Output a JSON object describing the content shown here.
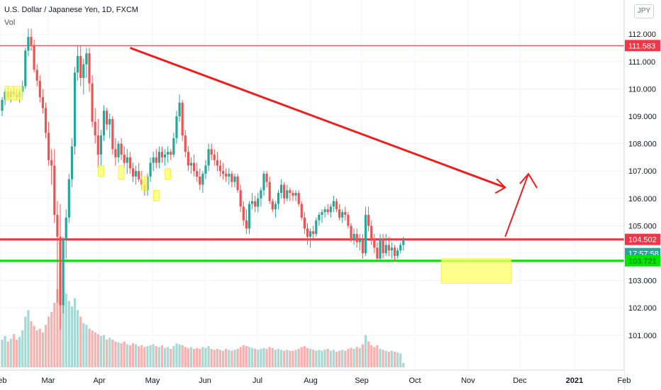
{
  "header": {
    "title": "U.S. Dollar / Japanese Yen, 1D, FXCM",
    "volume_label": "Vol"
  },
  "currency_badge": "JPY",
  "chart_data": {
    "type": "candlestick",
    "symbol": "USDJPY",
    "interval": "1D",
    "ylim": [
      100.2,
      113.0
    ],
    "y_ticks": [
      "101.000",
      "102.000",
      "103.000",
      "104.000",
      "105.000",
      "106.000",
      "107.000",
      "108.000",
      "109.000",
      "110.000",
      "111.000",
      "112.000"
    ],
    "x_ticks": [
      "Feb",
      "Mar",
      "Apr",
      "May",
      "Jun",
      "Jul",
      "Aug",
      "Sep",
      "Oct",
      "Nov",
      "Dec",
      "2021",
      "Feb"
    ],
    "price_labels": {
      "resistance_top": "111.583",
      "resistance": "104.502",
      "countdown": "17:57:58",
      "support": "103.721"
    },
    "levels": [
      {
        "name": "resistance_top",
        "value": 111.583,
        "color": "#f23645"
      },
      {
        "name": "resistance",
        "value": 104.502,
        "color": "#f23645"
      },
      {
        "name": "support",
        "value": 103.721,
        "color": "#00e600"
      }
    ],
    "colors": {
      "up": "#26a69a",
      "down": "#ef5350",
      "up_vol": "#a8d8d3",
      "down_vol": "#f7b2b0",
      "current_price": "#26a69a"
    },
    "trendline": {
      "from": {
        "x": 44,
        "y": 111.5
      },
      "to": {
        "x": 173,
        "y": 106.4
      }
    },
    "projection_arrow": {
      "from": {
        "x": 173,
        "y": 104.6
      },
      "to": {
        "x": 181,
        "y": 106.9
      }
    },
    "highlight_boxes": [
      {
        "x0": 1,
        "x1": 7,
        "y0": 109.6,
        "y1": 110.1
      },
      {
        "x0": 33,
        "x1": 35,
        "y0": 106.8,
        "y1": 107.2
      },
      {
        "x0": 40,
        "x1": 42,
        "y0": 106.7,
        "y1": 107.2
      },
      {
        "x0": 48,
        "x1": 50,
        "y0": 106.3,
        "y1": 106.8
      },
      {
        "x0": 52,
        "x1": 54,
        "y0": 105.9,
        "y1": 106.3
      },
      {
        "x0": 56,
        "x1": 58,
        "y0": 106.7,
        "y1": 107.1
      },
      {
        "x0": 151,
        "x1": 175,
        "y0": 102.9,
        "y1": 103.8
      }
    ],
    "ohlc": [
      [
        109.2,
        109.7,
        109.0,
        109.6
      ],
      [
        109.6,
        110.0,
        109.4,
        109.9
      ],
      [
        109.9,
        110.1,
        109.6,
        109.7
      ],
      [
        109.7,
        110.0,
        109.5,
        109.9
      ],
      [
        109.9,
        110.1,
        109.7,
        109.8
      ],
      [
        109.8,
        110.0,
        109.6,
        109.7
      ],
      [
        109.7,
        110.0,
        109.5,
        109.9
      ],
      [
        109.9,
        110.3,
        109.7,
        110.1
      ],
      [
        110.1,
        111.5,
        110.0,
        111.4
      ],
      [
        111.4,
        112.2,
        111.2,
        111.9
      ],
      [
        111.9,
        112.2,
        111.4,
        111.6
      ],
      [
        111.6,
        111.8,
        110.6,
        110.7
      ],
      [
        110.7,
        110.9,
        110.1,
        110.3
      ],
      [
        110.3,
        110.5,
        109.5,
        109.7
      ],
      [
        109.7,
        110.0,
        109.1,
        109.3
      ],
      [
        109.3,
        109.5,
        108.2,
        108.4
      ],
      [
        108.4,
        108.8,
        107.2,
        107.4
      ],
      [
        107.4,
        107.8,
        106.5,
        107.2
      ],
      [
        107.2,
        107.8,
        105.1,
        105.4
      ],
      [
        105.4,
        105.9,
        102.2,
        104.6
      ],
      [
        104.6,
        105.8,
        101.2,
        102.1
      ],
      [
        102.1,
        104.6,
        101.8,
        104.5
      ],
      [
        104.5,
        105.6,
        103.8,
        105.3
      ],
      [
        105.3,
        106.9,
        105.1,
        106.7
      ],
      [
        106.7,
        108.2,
        106.4,
        107.9
      ],
      [
        107.9,
        110.8,
        107.6,
        110.6
      ],
      [
        110.6,
        111.6,
        110.3,
        111.2
      ],
      [
        111.2,
        111.6,
        110.1,
        110.4
      ],
      [
        110.4,
        111.1,
        109.8,
        110.9
      ],
      [
        110.9,
        111.5,
        110.4,
        111.3
      ],
      [
        111.3,
        111.5,
        109.9,
        110.2
      ],
      [
        110.2,
        110.5,
        108.6,
        108.8
      ],
      [
        108.8,
        109.3,
        108.0,
        108.3
      ],
      [
        108.3,
        108.9,
        107.1,
        107.6
      ],
      [
        107.6,
        108.5,
        107.2,
        108.3
      ],
      [
        108.3,
        109.4,
        108.1,
        109.2
      ],
      [
        109.2,
        109.3,
        108.5,
        108.7
      ],
      [
        108.7,
        109.1,
        108.2,
        108.9
      ],
      [
        108.9,
        109.0,
        107.6,
        107.8
      ],
      [
        107.8,
        108.2,
        107.2,
        107.5
      ],
      [
        107.5,
        108.1,
        107.3,
        108.0
      ],
      [
        108.0,
        108.2,
        107.4,
        107.6
      ],
      [
        107.6,
        107.9,
        107.1,
        107.3
      ],
      [
        107.3,
        107.8,
        106.9,
        107.5
      ],
      [
        107.5,
        107.7,
        106.9,
        107.1
      ],
      [
        107.1,
        107.3,
        106.6,
        106.8
      ],
      [
        106.8,
        107.2,
        106.5,
        107.0
      ],
      [
        107.0,
        107.3,
        106.6,
        106.7
      ],
      [
        106.7,
        107.0,
        106.3,
        106.5
      ],
      [
        106.5,
        106.8,
        106.1,
        106.3
      ],
      [
        106.3,
        106.9,
        106.1,
        106.8
      ],
      [
        106.8,
        107.5,
        106.6,
        107.3
      ],
      [
        107.3,
        107.7,
        107.0,
        107.5
      ],
      [
        107.5,
        107.8,
        107.1,
        107.3
      ],
      [
        107.3,
        107.9,
        107.1,
        107.7
      ],
      [
        107.7,
        107.9,
        107.3,
        107.5
      ],
      [
        107.5,
        107.8,
        107.2,
        107.6
      ],
      [
        107.6,
        107.9,
        107.3,
        107.7
      ],
      [
        107.7,
        107.8,
        107.4,
        107.6
      ],
      [
        107.6,
        108.4,
        107.5,
        108.2
      ],
      [
        108.2,
        109.2,
        108.0,
        109.0
      ],
      [
        109.0,
        109.8,
        108.8,
        109.5
      ],
      [
        109.5,
        109.6,
        108.1,
        108.3
      ],
      [
        108.3,
        108.5,
        107.5,
        107.7
      ],
      [
        107.7,
        107.9,
        107.0,
        107.2
      ],
      [
        107.2,
        107.5,
        106.9,
        107.3
      ],
      [
        107.3,
        107.6,
        106.8,
        107.0
      ],
      [
        107.0,
        107.3,
        106.6,
        106.8
      ],
      [
        106.8,
        107.1,
        106.3,
        106.5
      ],
      [
        106.5,
        107.0,
        106.2,
        106.9
      ],
      [
        106.9,
        107.4,
        106.7,
        107.2
      ],
      [
        107.2,
        108.0,
        107.0,
        107.8
      ],
      [
        107.8,
        108.0,
        107.4,
        107.6
      ],
      [
        107.6,
        107.8,
        107.2,
        107.4
      ],
      [
        107.4,
        107.7,
        107.0,
        107.2
      ],
      [
        107.2,
        107.4,
        106.8,
        107.0
      ],
      [
        107.0,
        107.3,
        106.7,
        106.9
      ],
      [
        106.9,
        107.1,
        106.6,
        106.8
      ],
      [
        106.8,
        107.1,
        106.5,
        106.9
      ],
      [
        106.9,
        107.0,
        106.4,
        106.6
      ],
      [
        106.6,
        106.9,
        106.4,
        106.8
      ],
      [
        106.8,
        106.9,
        106.2,
        106.3
      ],
      [
        106.3,
        106.5,
        105.5,
        105.7
      ],
      [
        105.7,
        105.9,
        105.0,
        105.2
      ],
      [
        105.2,
        105.6,
        104.7,
        104.9
      ],
      [
        104.9,
        105.9,
        104.7,
        105.8
      ],
      [
        105.8,
        106.2,
        105.6,
        105.9
      ],
      [
        105.9,
        106.1,
        105.5,
        105.7
      ],
      [
        105.7,
        106.2,
        105.5,
        106.0
      ],
      [
        106.0,
        106.4,
        105.7,
        106.3
      ],
      [
        106.3,
        107.0,
        106.1,
        106.9
      ],
      [
        106.9,
        107.0,
        106.4,
        106.6
      ],
      [
        106.6,
        106.8,
        105.8,
        105.9
      ],
      [
        105.9,
        106.0,
        105.5,
        105.6
      ],
      [
        105.6,
        105.9,
        105.3,
        105.8
      ],
      [
        105.8,
        106.3,
        105.6,
        106.2
      ],
      [
        106.2,
        106.7,
        106.0,
        106.5
      ],
      [
        106.5,
        106.6,
        105.8,
        106.0
      ],
      [
        106.0,
        106.5,
        105.9,
        106.3
      ],
      [
        106.3,
        106.4,
        105.9,
        106.2
      ],
      [
        106.2,
        106.3,
        105.9,
        106.1
      ],
      [
        106.1,
        106.3,
        105.9,
        106.2
      ],
      [
        106.2,
        106.3,
        105.7,
        105.8
      ],
      [
        105.8,
        105.9,
        105.2,
        105.3
      ],
      [
        105.3,
        105.5,
        104.7,
        104.9
      ],
      [
        104.9,
        105.1,
        104.3,
        104.6
      ],
      [
        104.6,
        104.9,
        104.2,
        104.8
      ],
      [
        104.8,
        105.0,
        104.5,
        104.7
      ],
      [
        104.7,
        105.3,
        104.6,
        105.2
      ],
      [
        105.2,
        105.5,
        105.0,
        105.4
      ],
      [
        105.4,
        105.6,
        105.1,
        105.5
      ],
      [
        105.5,
        105.7,
        105.3,
        105.6
      ],
      [
        105.6,
        105.8,
        105.4,
        105.5
      ],
      [
        105.5,
        105.8,
        105.3,
        105.7
      ],
      [
        105.7,
        106.1,
        105.5,
        105.9
      ],
      [
        105.9,
        106.0,
        105.5,
        105.6
      ],
      [
        105.6,
        105.8,
        105.2,
        105.3
      ],
      [
        105.3,
        105.6,
        105.1,
        105.5
      ],
      [
        105.5,
        105.7,
        105.2,
        105.4
      ],
      [
        105.4,
        105.5,
        104.9,
        105.0
      ],
      [
        105.0,
        105.1,
        104.4,
        104.5
      ],
      [
        104.5,
        104.9,
        104.3,
        104.7
      ],
      [
        104.7,
        104.9,
        104.2,
        104.4
      ],
      [
        104.4,
        104.7,
        104.1,
        104.5
      ],
      [
        104.5,
        104.7,
        103.8,
        104.0
      ],
      [
        104.0,
        105.7,
        103.9,
        105.4
      ],
      [
        105.4,
        105.7,
        104.8,
        105.0
      ],
      [
        105.0,
        105.2,
        104.3,
        104.5
      ],
      [
        104.5,
        104.7,
        104.0,
        104.2
      ],
      [
        104.2,
        104.4,
        103.7,
        103.8
      ],
      [
        103.8,
        104.7,
        103.7,
        104.5
      ],
      [
        104.5,
        104.7,
        103.8,
        104.0
      ],
      [
        104.0,
        104.7,
        103.9,
        104.3
      ],
      [
        104.3,
        104.6,
        103.9,
        104.1
      ],
      [
        104.1,
        104.4,
        103.8,
        104.2
      ],
      [
        104.2,
        104.3,
        103.7,
        103.9
      ],
      [
        103.9,
        104.2,
        103.8,
        104.1
      ],
      [
        104.1,
        104.4,
        104.0,
        104.3
      ],
      [
        104.3,
        104.6,
        104.1,
        104.5
      ]
    ],
    "volume": [
      0.3,
      0.34,
      0.28,
      0.31,
      0.36,
      0.3,
      0.33,
      0.4,
      0.55,
      0.62,
      0.5,
      0.45,
      0.4,
      0.42,
      0.38,
      0.46,
      0.55,
      0.6,
      0.7,
      0.85,
      1.0,
      0.95,
      0.8,
      0.72,
      0.66,
      0.75,
      0.62,
      0.55,
      0.48,
      0.46,
      0.42,
      0.4,
      0.38,
      0.36,
      0.34,
      0.35,
      0.3,
      0.32,
      0.3,
      0.28,
      0.27,
      0.26,
      0.28,
      0.25,
      0.24,
      0.26,
      0.25,
      0.23,
      0.24,
      0.22,
      0.23,
      0.24,
      0.25,
      0.23,
      0.22,
      0.24,
      0.21,
      0.22,
      0.2,
      0.23,
      0.26,
      0.25,
      0.24,
      0.22,
      0.21,
      0.22,
      0.2,
      0.21,
      0.2,
      0.22,
      0.21,
      0.23,
      0.2,
      0.19,
      0.2,
      0.19,
      0.18,
      0.2,
      0.19,
      0.18,
      0.19,
      0.2,
      0.22,
      0.24,
      0.23,
      0.22,
      0.21,
      0.2,
      0.19,
      0.2,
      0.21,
      0.2,
      0.22,
      0.21,
      0.19,
      0.2,
      0.19,
      0.18,
      0.19,
      0.18,
      0.18,
      0.19,
      0.2,
      0.22,
      0.23,
      0.21,
      0.2,
      0.19,
      0.18,
      0.19,
      0.18,
      0.19,
      0.2,
      0.18,
      0.19,
      0.17,
      0.18,
      0.19,
      0.18,
      0.2,
      0.21,
      0.2,
      0.22,
      0.21,
      0.25,
      0.35,
      0.28,
      0.24,
      0.22,
      0.24,
      0.2,
      0.19,
      0.18,
      0.17,
      0.18,
      0.17,
      0.16,
      0.15,
      0.05
    ]
  }
}
